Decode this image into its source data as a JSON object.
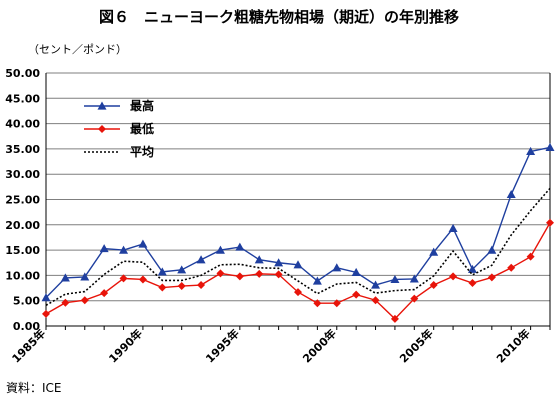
{
  "title": "図６　ニューヨーク粗糖先物相場（期近）の年別推移",
  "unit_label": "（セント／ポンド）",
  "source": "資料：ICE",
  "colors": {
    "high": "#1f3f9f",
    "low": "#e8140a",
    "avg": "#000000",
    "grid": "#7f7f7f"
  },
  "chart_data": {
    "type": "line",
    "title": "図６　ニューヨーク粗糖先物相場（期近）の年別推移",
    "ylabel": "（セント／ポンド）",
    "xlabel": "",
    "ylim": [
      0,
      50
    ],
    "yticks": [
      "0.00",
      "5.00",
      "10.00",
      "15.00",
      "20.00",
      "25.00",
      "30.00",
      "35.00",
      "40.00",
      "45.00",
      "50.00"
    ],
    "x": [
      1985,
      1986,
      1987,
      1988,
      1989,
      1990,
      1991,
      1992,
      1993,
      1994,
      1995,
      1996,
      1997,
      1998,
      1999,
      2000,
      2001,
      2002,
      2003,
      2004,
      2005,
      2006,
      2007,
      2008,
      2009,
      2010,
      2011
    ],
    "xtick_labels": [
      {
        "year": 1985,
        "label": "1985年"
      },
      {
        "year": 1990,
        "label": "1990年"
      },
      {
        "year": 1995,
        "label": "1995年"
      },
      {
        "year": 2000,
        "label": "2000年"
      },
      {
        "year": 2005,
        "label": "2005年"
      },
      {
        "year": 2010,
        "label": "2010年"
      }
    ],
    "grid": true,
    "legend_position": "top-left",
    "series": [
      {
        "key": "high",
        "name": "最高",
        "marker": "triangle",
        "line": "solid",
        "values": [
          5.6,
          9.5,
          9.7,
          15.3,
          15.0,
          16.2,
          10.7,
          11.1,
          13.1,
          15.0,
          15.6,
          13.1,
          12.5,
          12.1,
          8.9,
          11.5,
          10.6,
          8.1,
          9.2,
          9.3,
          14.6,
          19.3,
          11.2,
          15.0,
          26.0,
          34.5,
          35.3
        ]
      },
      {
        "key": "low",
        "name": "最低",
        "marker": "diamond",
        "line": "solid",
        "values": [
          2.4,
          4.6,
          5.1,
          6.5,
          9.4,
          9.2,
          7.6,
          7.9,
          8.1,
          10.4,
          9.8,
          10.3,
          10.2,
          6.7,
          4.5,
          4.5,
          6.2,
          5.1,
          1.4,
          5.4,
          8.1,
          9.8,
          8.5,
          9.6,
          11.5,
          13.7,
          20.4
        ]
      },
      {
        "key": "avg",
        "name": "平均",
        "marker": "none",
        "line": "dotted",
        "values": [
          4.1,
          6.3,
          6.8,
          10.2,
          12.8,
          12.6,
          9.0,
          9.0,
          10.0,
          12.1,
          12.2,
          11.5,
          11.4,
          8.9,
          6.4,
          8.3,
          8.6,
          6.5,
          7.0,
          7.2,
          9.9,
          14.8,
          10.1,
          12.0,
          18.0,
          22.8,
          27.2
        ]
      }
    ]
  }
}
